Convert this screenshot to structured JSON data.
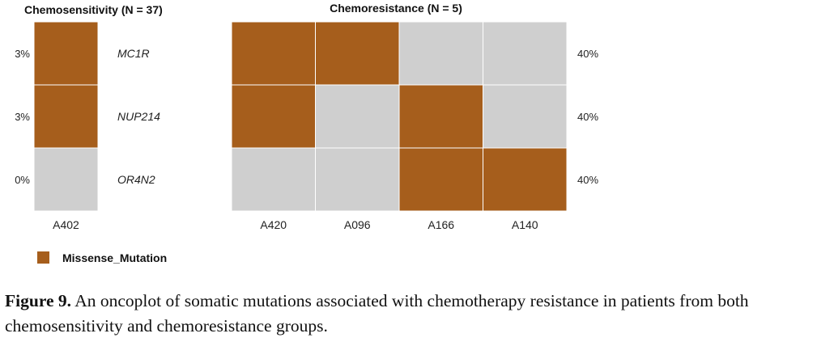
{
  "chart_data": {
    "type": "heatmap",
    "genes": [
      "MC1R",
      "NUP214",
      "OR4N2"
    ],
    "legend": {
      "label": "Missense_Mutation",
      "color": "#A65E1C"
    },
    "empty_color": "#CFCFCF",
    "groups": [
      {
        "title": "Chemosensitivity (N = 37)",
        "samples": [
          "A402"
        ],
        "percents": [
          "3%",
          "3%",
          "0%"
        ],
        "matrix": [
          [
            1
          ],
          [
            1
          ],
          [
            0
          ]
        ]
      },
      {
        "title": "Chemoresistance (N = 5)",
        "samples": [
          "A420",
          "A096",
          "A166",
          "A140"
        ],
        "percents": [
          "40%",
          "40%",
          "40%"
        ],
        "matrix": [
          [
            1,
            1,
            0,
            0
          ],
          [
            1,
            0,
            1,
            0
          ],
          [
            0,
            0,
            1,
            1
          ]
        ]
      }
    ]
  },
  "caption": {
    "label": "Figure 9.",
    "text": "An oncoplot of somatic mutations associated with chemotherapy resistance in patients from both chemosensitivity and chemoresistance groups."
  }
}
